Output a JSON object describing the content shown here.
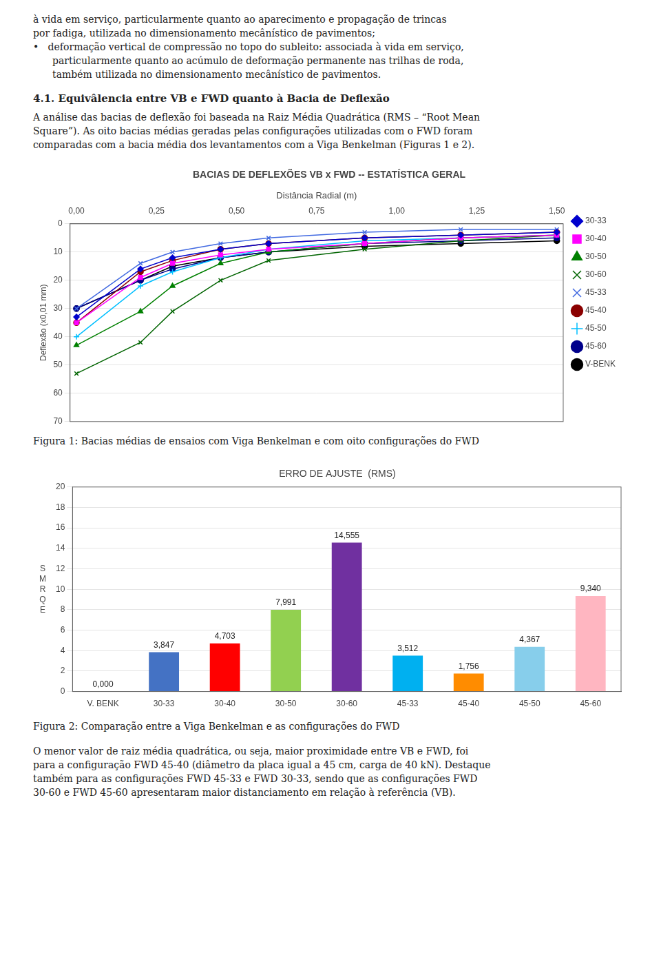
{
  "text_top": [
    "à vida em serviço, particularmente quanto ao aparecimento e propagação de trincas",
    "por fadiga, utilizada no dimensionamento mecânístico de pavimentos;",
    "•   deformação vertical de compressão no topo do subleito: associada à vida em serviço,",
    "particularmente quanto ao acúmulo de deformação permanente nas trilhas de roda,",
    "também utilizada no dimensionamento mecânístico de pavimentos."
  ],
  "section_title": "4.1. Equivâlencia entre VB e FWD quanto à Bacia de Deflexão",
  "section_text": [
    "A análise das bacias de deflexão foi baseada na Raiz Média Quadrática (RMS – “Root Mean",
    "Square”). As oito bacias médias geradas pelas configurações utilizadas com o FWD foram",
    "comparadas com a bacia média dos levantamentos com a Viga Benkelman (Figuras 1 e 2)."
  ],
  "chart_data": [
    {
      "type": "line",
      "title": "BACIAS DE DEFLEXÕES VB x FWD -- ESTATÍSTICA GERAL",
      "xlabel": "Distância Radial (m)",
      "ylabel": "Deflexão (x0,01 mm)",
      "x": [
        0.0,
        0.2,
        0.3,
        0.45,
        0.6,
        0.9,
        1.2,
        1.5
      ],
      "series": [
        {
          "name": "30-33",
          "color": "#0000CD",
          "marker": "diamond",
          "values": [
            33,
            16,
            12,
            9,
            7,
            5,
            4,
            3
          ]
        },
        {
          "name": "30-40",
          "color": "#FF00FF",
          "marker": "square",
          "values": [
            35,
            19,
            14,
            11,
            9,
            7,
            5,
            4
          ]
        },
        {
          "name": "30-50",
          "color": "#008000",
          "marker": "triangle",
          "values": [
            43,
            31,
            22,
            14,
            10,
            7,
            5,
            4
          ]
        },
        {
          "name": "30-60",
          "color": "#006400",
          "marker": "x",
          "values": [
            53,
            42,
            31,
            20,
            13,
            9,
            6,
            4
          ]
        },
        {
          "name": "45-33",
          "color": "#4169E1",
          "marker": "x",
          "values": [
            30,
            14,
            10,
            7,
            5,
            3,
            2,
            2
          ]
        },
        {
          "name": "45-40",
          "color": "#8B0000",
          "marker": "circle",
          "values": [
            35,
            17,
            13,
            9,
            7,
            5,
            4,
            3
          ]
        },
        {
          "name": "45-50",
          "color": "#00BFFF",
          "marker": "plus",
          "values": [
            40,
            22,
            17,
            12,
            9,
            6,
            5,
            4
          ]
        },
        {
          "name": "45-60",
          "color": "#00008B",
          "marker": "circle",
          "values": [
            30,
            20,
            16,
            12,
            10,
            7,
            6,
            5
          ]
        },
        {
          "name": "V-BENK",
          "color": "#000000",
          "marker": "circle",
          "values": [
            30,
            20,
            15,
            12,
            10,
            8,
            7,
            6
          ]
        }
      ],
      "xlim": [
        -0.02,
        1.52
      ],
      "xticks": [
        {
          "value": 0.0,
          "label": "0,00"
        },
        {
          "value": 0.25,
          "label": "0,25"
        },
        {
          "value": 0.5,
          "label": "0,50"
        },
        {
          "value": 0.75,
          "label": "0,75"
        },
        {
          "value": 1.0,
          "label": "1,00"
        },
        {
          "value": 1.25,
          "label": "1,25"
        },
        {
          "value": 1.5,
          "label": "1,50"
        }
      ],
      "ylim": [
        70,
        0
      ],
      "yticks": [
        0,
        10,
        20,
        30,
        40,
        50,
        60,
        70
      ],
      "grid": "y",
      "legend": "right",
      "caption": "Figura 1: Bacias médias de ensaios com Viga Benkelman e com oito configurações do FWD"
    },
    {
      "type": "bar",
      "title": "ERRO DE AJUSTE  (RMS)",
      "ylabel": "S\nM\nR\nQ\nE",
      "categories": [
        "V. BENK",
        "30-33",
        "30-40",
        "30-50",
        "30-60",
        "45-33",
        "45-40",
        "45-50",
        "45-60"
      ],
      "values": [
        0.0,
        3.847,
        4.703,
        7.991,
        14.555,
        3.512,
        1.756,
        4.367,
        9.34
      ],
      "value_labels": [
        "0,000",
        "3,847",
        "4,703",
        "7,991",
        "14,555",
        "3,512",
        "1,756",
        "4,367",
        "9,340"
      ],
      "colors": [
        "#C0C0C0",
        "#4472C4",
        "#FF0000",
        "#92D050",
        "#7030A0",
        "#00B0F0",
        "#FF8C00",
        "#87CEEB",
        "#FFB6C1"
      ],
      "ylim": [
        0,
        20
      ],
      "yticks": [
        0,
        2,
        4,
        6,
        8,
        10,
        12,
        14,
        16,
        18,
        20
      ],
      "grid": "y",
      "data_labels": true,
      "caption": "Figura 2: Comparação entre a Viga Benkelman e as configurações do FWD"
    }
  ],
  "footer": [
    "O menor valor de raiz média quadrática, ou seja, maior proximidade entre VB e FWD, foi",
    "para a configuração FWD 45-40 (diâmetro da placa igual a 45 cm, carga de 40 kN). Destaque",
    "também para as configurações FWD 45-33 e FWD 30-33, sendo que as configurações FWD",
    "30-60 e FWD 45-60 apresentaram maior distanciamento em relação à referência (VB)."
  ]
}
